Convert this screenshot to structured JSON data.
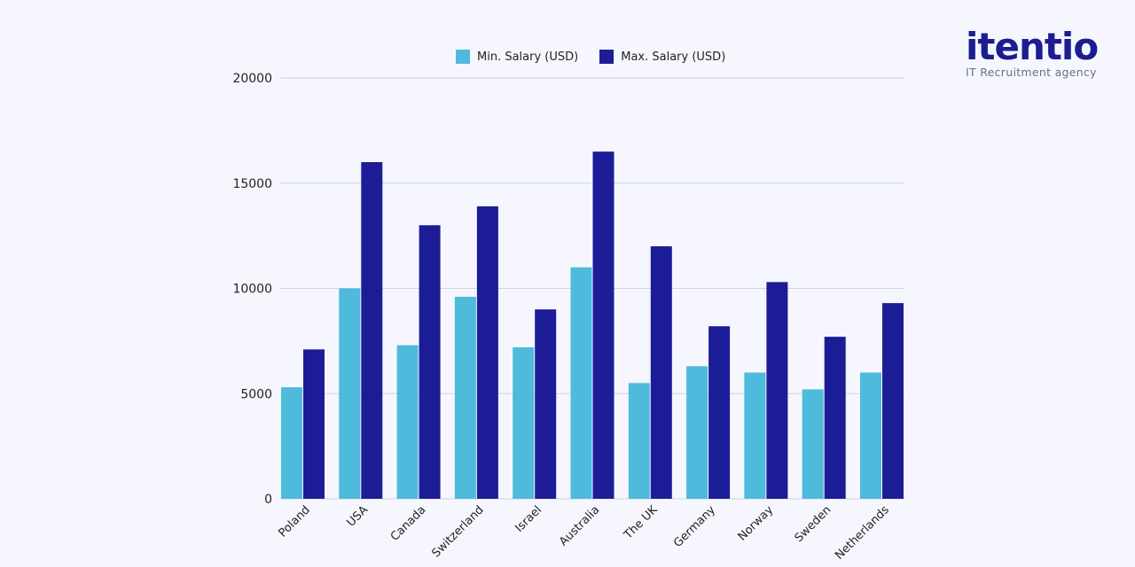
{
  "logo": {
    "wordmark": "itentio",
    "tagline": "IT Recruitment agency"
  },
  "chart_data": {
    "type": "bar",
    "title": "",
    "xlabel": "",
    "ylabel": "",
    "ylim": [
      0,
      20000
    ],
    "yticks": [
      0,
      5000,
      10000,
      15000,
      20000
    ],
    "grid": true,
    "legend_position": "top",
    "categories": [
      "Poland",
      "USA",
      "Canada",
      "Switzerland",
      "Israel",
      "Australia",
      "The UK",
      "Germany",
      "Norway",
      "Sweden",
      "Netherlands"
    ],
    "series": [
      {
        "name": "Min. Salary (USD)",
        "color": "#4ebadc",
        "values": [
          5300,
          10000,
          7300,
          9600,
          7200,
          11000,
          5500,
          6300,
          6000,
          5200,
          6000
        ]
      },
      {
        "name": "Max. Salary (USD)",
        "color": "#1c1d96",
        "values": [
          7100,
          16000,
          13000,
          13900,
          9000,
          16500,
          12000,
          8200,
          10300,
          7700,
          9300
        ]
      }
    ]
  }
}
